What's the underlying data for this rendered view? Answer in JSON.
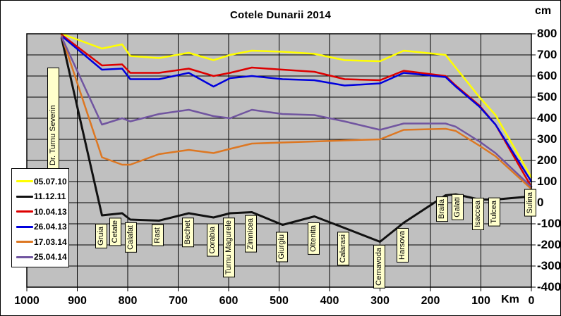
{
  "page": {
    "title": "Cotele Dunarii 2014",
    "y_unit_label": "cm",
    "x_unit_label": "Km"
  },
  "chart_data": {
    "type": "line",
    "title": "Cotele Dunarii 2014",
    "xlabel": "Km",
    "ylabel": "cm",
    "x_axis": {
      "min": 0,
      "max": 1000,
      "reversed": true,
      "ticks": [
        1000,
        900,
        800,
        700,
        600,
        500,
        400,
        300,
        200,
        100,
        0
      ]
    },
    "y_axis": {
      "min": -400,
      "max": 800,
      "ticks": [
        800,
        700,
        600,
        500,
        400,
        300,
        200,
        100,
        0,
        -100,
        -200,
        -300,
        -400
      ]
    },
    "grid": true,
    "legend_position": "middle-left",
    "colors": {
      "plot_bg": "#c0c0c0",
      "grid": "#000000",
      "station_label_bg": "#ffffcc"
    },
    "stations": [
      {
        "name": "Dr. Turnu Severin",
        "km": 931
      },
      {
        "name": "Gruia",
        "km": 851
      },
      {
        "name": "Cetate",
        "km": 811
      },
      {
        "name": "Calafat",
        "km": 795
      },
      {
        "name": "Rast",
        "km": 738
      },
      {
        "name": "Bechet",
        "km": 679
      },
      {
        "name": "Corabia",
        "km": 630
      },
      {
        "name": "Turnu Magurele",
        "km": 597
      },
      {
        "name": "Zimnicea",
        "km": 554
      },
      {
        "name": "Giurgiu",
        "km": 493
      },
      {
        "name": "Oltenita",
        "km": 430
      },
      {
        "name": "Calarasi",
        "km": 370
      },
      {
        "name": "Cernavoda",
        "km": 300
      },
      {
        "name": "Harsova",
        "km": 253
      },
      {
        "name": "Braila",
        "km": 170
      },
      {
        "name": "Galati",
        "km": 150
      },
      {
        "name": "Isaccea",
        "km": 103
      },
      {
        "name": "Tulcea",
        "km": 71
      },
      {
        "name": "Sulina",
        "km": 0
      }
    ],
    "series": [
      {
        "name": "05.07.10",
        "color": "#ffff00",
        "values": [
          800,
          730,
          750,
          695,
          685,
          710,
          675,
          700,
          720,
          715,
          705,
          675,
          670,
          720,
          700,
          640,
          500,
          415,
          120
        ]
      },
      {
        "name": "11.12.11",
        "color": "#111111",
        "values": [
          780,
          -60,
          -50,
          -80,
          -85,
          -50,
          -70,
          -50,
          -45,
          -105,
          -65,
          -120,
          -185,
          -95,
          35,
          40,
          15,
          15,
          30
        ]
      },
      {
        "name": "10.04.13",
        "color": "#dd0000",
        "values": [
          795,
          650,
          655,
          615,
          615,
          635,
          600,
          615,
          640,
          630,
          620,
          585,
          580,
          625,
          600,
          555,
          460,
          370,
          75
        ]
      },
      {
        "name": "26.04.13",
        "color": "#0000dd",
        "values": [
          790,
          630,
          635,
          585,
          585,
          615,
          550,
          590,
          600,
          585,
          580,
          555,
          565,
          615,
          595,
          550,
          455,
          370,
          100
        ]
      },
      {
        "name": "17.03.14",
        "color": "#dd7722",
        "values": [
          790,
          215,
          180,
          180,
          230,
          250,
          235,
          255,
          280,
          285,
          290,
          295,
          300,
          345,
          350,
          340,
          270,
          220,
          65
        ]
      },
      {
        "name": "25.04.14",
        "color": "#7155a0",
        "values": [
          785,
          370,
          400,
          385,
          420,
          440,
          410,
          400,
          440,
          420,
          415,
          385,
          345,
          375,
          375,
          360,
          290,
          235,
          75
        ]
      }
    ]
  }
}
